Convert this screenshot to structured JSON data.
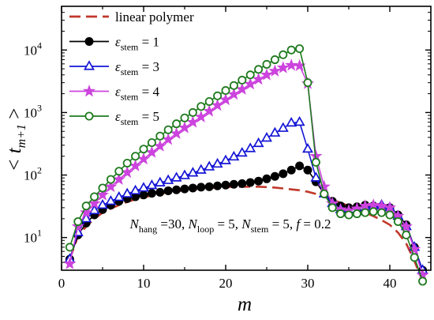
{
  "chart_data": {
    "type": "line",
    "xlabel": "m",
    "ylabel": "< t",
    "ylabel_sub": "m+1",
    "ylabel_close": " >",
    "xlim": [
      0,
      45
    ],
    "ylim": [
      3,
      50000
    ],
    "yscale": "log",
    "xticks": [
      0,
      10,
      20,
      30,
      40
    ],
    "yticks": [
      {
        "value": 10,
        "base": "10",
        "exp": "1"
      },
      {
        "value": 100,
        "base": "10",
        "exp": "2"
      },
      {
        "value": 1000,
        "base": "10",
        "exp": "3"
      },
      {
        "value": 10000,
        "base": "10",
        "exp": "4"
      }
    ],
    "grid": false,
    "legend_position": "top-left",
    "annotation": {
      "parts": [
        {
          "t": "N",
          "style": "italic"
        },
        {
          "t": "hang",
          "style": "sub"
        },
        {
          "t": " =30, "
        },
        {
          "t": "N",
          "style": "italic"
        },
        {
          "t": "loop",
          "style": "sub"
        },
        {
          "t": " = 5, "
        },
        {
          "t": "N",
          "style": "italic"
        },
        {
          "t": "stem",
          "style": "sub"
        },
        {
          "t": " = 5, "
        },
        {
          "t": "f",
          "style": "italic"
        },
        {
          "t": " = 0.2"
        }
      ]
    },
    "series": [
      {
        "name": "linear polymer",
        "label_main": "linear polymer",
        "label_sub": "",
        "label_tail": "",
        "color": "#c0392b",
        "marker": "none",
        "dash": "14,7",
        "x": [
          1,
          2,
          3,
          4,
          5,
          6,
          7,
          8,
          9,
          10,
          11,
          12,
          13,
          14,
          15,
          16,
          17,
          18,
          19,
          20,
          21,
          22,
          23,
          24,
          25,
          26,
          27,
          28,
          29,
          30,
          31,
          32,
          33,
          34,
          35,
          36,
          37,
          38,
          39,
          40,
          41,
          42,
          43,
          44
        ],
        "y": [
          4.5,
          10.5,
          15,
          20,
          25,
          29,
          33,
          37,
          41,
          44,
          47,
          50,
          53,
          55,
          57,
          59,
          61,
          62,
          63,
          64,
          65,
          65,
          65,
          65,
          64,
          63,
          61,
          59,
          57,
          54,
          50,
          45,
          40,
          36,
          32,
          28,
          25,
          22,
          19,
          16,
          12,
          8,
          4.2,
          2
        ]
      },
      {
        "name": "ε stem = 1",
        "label_main": "ε",
        "label_sub": "stem",
        "label_tail": " = 1",
        "color": "#000000",
        "marker": "circle",
        "filled": true,
        "dash": "",
        "x": [
          1,
          2,
          3,
          4,
          5,
          6,
          7,
          8,
          9,
          10,
          11,
          12,
          13,
          14,
          15,
          16,
          17,
          18,
          19,
          20,
          21,
          22,
          23,
          24,
          25,
          26,
          27,
          28,
          29,
          30,
          31,
          32,
          33,
          34,
          35,
          36,
          37,
          38,
          39,
          40,
          41,
          42,
          43,
          44
        ],
        "y": [
          4.5,
          11,
          17,
          23,
          28,
          33,
          38,
          42,
          45,
          48,
          51,
          53,
          56,
          58,
          60,
          62,
          64,
          65,
          67,
          69,
          71,
          73,
          76,
          80,
          87,
          95,
          105,
          120,
          140,
          120,
          78,
          50,
          38,
          32,
          30,
          31,
          33,
          32,
          31,
          30,
          23,
          16,
          7,
          3
        ]
      },
      {
        "name": "ε stem = 3",
        "label_main": "ε",
        "label_sub": "stem",
        "label_tail": " = 3",
        "color": "#1515d6",
        "marker": "triangle",
        "filled": false,
        "dash": "",
        "x": [
          1,
          2,
          3,
          4,
          5,
          6,
          7,
          8,
          9,
          10,
          11,
          12,
          13,
          14,
          15,
          16,
          17,
          18,
          19,
          20,
          21,
          22,
          23,
          24,
          25,
          26,
          27,
          28,
          29,
          30,
          31,
          32,
          33,
          34,
          35,
          36,
          37,
          38,
          39,
          40,
          41,
          42,
          43,
          44
        ],
        "y": [
          4.5,
          12,
          20,
          27,
          33,
          38,
          44,
          50,
          56,
          62,
          68,
          75,
          82,
          90,
          98,
          108,
          120,
          135,
          150,
          170,
          195,
          225,
          265,
          320,
          390,
          470,
          560,
          680,
          700,
          260,
          90,
          50,
          35,
          28,
          25,
          26,
          29,
          32,
          33,
          30,
          22,
          15,
          7,
          3
        ]
      },
      {
        "name": "ε stem = 4",
        "label_main": "ε",
        "label_sub": "stem",
        "label_tail": " = 4",
        "color": "#cc44dd",
        "marker": "star",
        "filled": true,
        "dash": "",
        "x": [
          1,
          2,
          3,
          4,
          5,
          6,
          7,
          8,
          9,
          10,
          11,
          12,
          13,
          14,
          15,
          16,
          17,
          18,
          19,
          20,
          21,
          22,
          23,
          24,
          25,
          26,
          27,
          28,
          29,
          30,
          31,
          32,
          33,
          34,
          35,
          36,
          37,
          38,
          39,
          40,
          41,
          42,
          43,
          44
        ],
        "y": [
          3.8,
          15,
          25,
          35,
          48,
          65,
          85,
          110,
          140,
          180,
          230,
          290,
          370,
          460,
          570,
          700,
          850,
          1050,
          1300,
          1600,
          1950,
          2350,
          2850,
          3400,
          4000,
          4600,
          5200,
          5700,
          5600,
          2900,
          200,
          65,
          35,
          28,
          27,
          29,
          32,
          33,
          32,
          30,
          22,
          15,
          6.5,
          2.5
        ]
      },
      {
        "name": "ε stem = 5",
        "label_main": "ε",
        "label_sub": "stem",
        "label_tail": " = 5",
        "color": "#1e7a1e",
        "marker": "circle",
        "filled": false,
        "dash": "",
        "x": [
          1,
          2,
          3,
          4,
          5,
          6,
          7,
          8,
          9,
          10,
          11,
          12,
          13,
          14,
          15,
          16,
          17,
          18,
          19,
          20,
          21,
          22,
          23,
          24,
          25,
          26,
          27,
          28,
          29,
          30,
          31,
          32,
          33,
          34,
          35,
          36,
          37,
          38,
          39,
          40,
          41,
          42,
          43,
          44
        ],
        "y": [
          7,
          18,
          32,
          45,
          62,
          85,
          115,
          155,
          200,
          260,
          330,
          420,
          530,
          660,
          820,
          1000,
          1250,
          1500,
          1850,
          2250,
          2700,
          3300,
          4000,
          4900,
          5900,
          7000,
          8400,
          10000,
          10500,
          3000,
          160,
          50,
          30,
          24,
          23,
          24,
          25,
          26,
          25,
          23,
          18,
          11,
          4.8,
          2
        ]
      }
    ]
  }
}
